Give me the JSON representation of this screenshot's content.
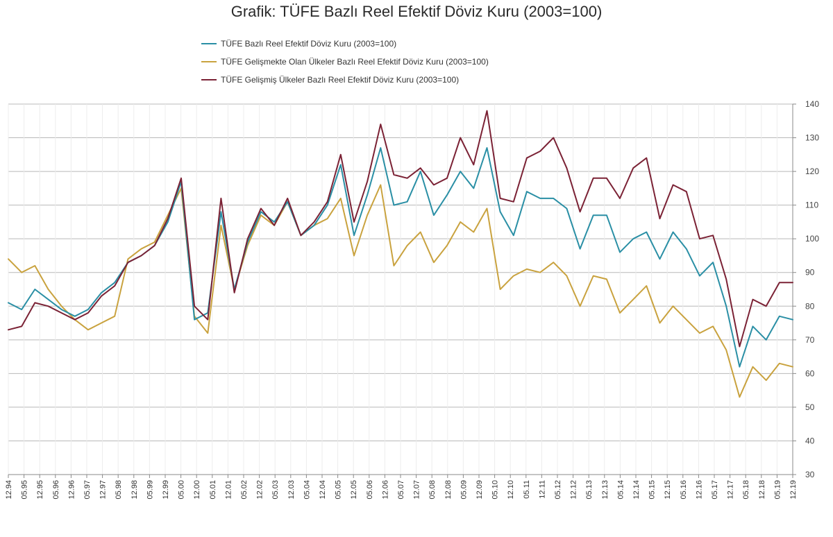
{
  "chart_data": {
    "type": "line",
    "title": "Grafik: TÜFE  Bazlı Reel Efektif Döviz Kuru (2003=100)",
    "xlabel": "",
    "ylabel": "",
    "ylim": [
      30,
      140
    ],
    "yticks": [
      30,
      40,
      50,
      60,
      70,
      80,
      90,
      100,
      110,
      120,
      130,
      140
    ],
    "y_axis_position": "right",
    "grid": "horizontal",
    "legend_position": "top-center",
    "x_ticks": [
      "12.94",
      "05.95",
      "12.95",
      "05.96",
      "12.96",
      "05.97",
      "12.97",
      "05.98",
      "12.98",
      "05.99",
      "12.99",
      "05.00",
      "12.00",
      "05.01",
      "12.01",
      "05.02",
      "12.02",
      "05.03",
      "12.03",
      "05.04",
      "12.04",
      "05.05",
      "12.05",
      "05.06",
      "12.06",
      "05.07",
      "12.07",
      "05.08",
      "12.08",
      "05.09",
      "12.09",
      "05.10",
      "12.10",
      "05.11",
      "12.11",
      "05.12",
      "12.12",
      "05.13",
      "12.13",
      "05.14",
      "12.14",
      "05.15",
      "12.15",
      "05.16",
      "12.16",
      "05.17",
      "12.17",
      "05.18",
      "12.18",
      "05.19",
      "12.19"
    ],
    "series": [
      {
        "name": "TÜFE  Bazlı Reel Efektif Döviz Kuru (2003=100)",
        "color": "#2a8fa5",
        "values": [
          81,
          79,
          85,
          82,
          79,
          77,
          79,
          84,
          87,
          93,
          95,
          98,
          105,
          117,
          76,
          78,
          108,
          85,
          99,
          108,
          105,
          111,
          101,
          104,
          110,
          122,
          101,
          113,
          127,
          110,
          111,
          120,
          107,
          113,
          120,
          115,
          127,
          108,
          101,
          114,
          112,
          112,
          109,
          97,
          107,
          107,
          96,
          100,
          102,
          94,
          102,
          97,
          89,
          93,
          80,
          62,
          74,
          70,
          77,
          76
        ]
      },
      {
        "name": "TÜFE Gelişmekte Olan Ülkeler Bazlı Reel Efektif Döviz Kuru (2003=100)",
        "color": "#c9a23e",
        "values": [
          94,
          90,
          92,
          85,
          80,
          76,
          73,
          75,
          77,
          94,
          97,
          99,
          107,
          115,
          77,
          72,
          104,
          85,
          98,
          107,
          104,
          111,
          101,
          104,
          106,
          112,
          95,
          107,
          116,
          92,
          98,
          102,
          93,
          98,
          105,
          102,
          109,
          85,
          89,
          91,
          90,
          93,
          89,
          80,
          89,
          88,
          78,
          82,
          86,
          75,
          80,
          76,
          72,
          74,
          67,
          53,
          62,
          58,
          63,
          62
        ]
      },
      {
        "name": "TÜFE Gelişmiş Ülkeler Bazlı Reel Efektif Döviz Kuru (2003=100)",
        "color": "#7b2235",
        "values": [
          73,
          74,
          81,
          80,
          78,
          76,
          78,
          83,
          86,
          93,
          95,
          98,
          106,
          118,
          80,
          76,
          112,
          84,
          100,
          109,
          104,
          112,
          101,
          105,
          111,
          125,
          105,
          117,
          134,
          119,
          118,
          121,
          116,
          118,
          130,
          122,
          138,
          112,
          111,
          124,
          126,
          130,
          121,
          108,
          118,
          118,
          112,
          121,
          124,
          106,
          116,
          114,
          100,
          101,
          88,
          68,
          82,
          80,
          87,
          87
        ]
      }
    ]
  }
}
